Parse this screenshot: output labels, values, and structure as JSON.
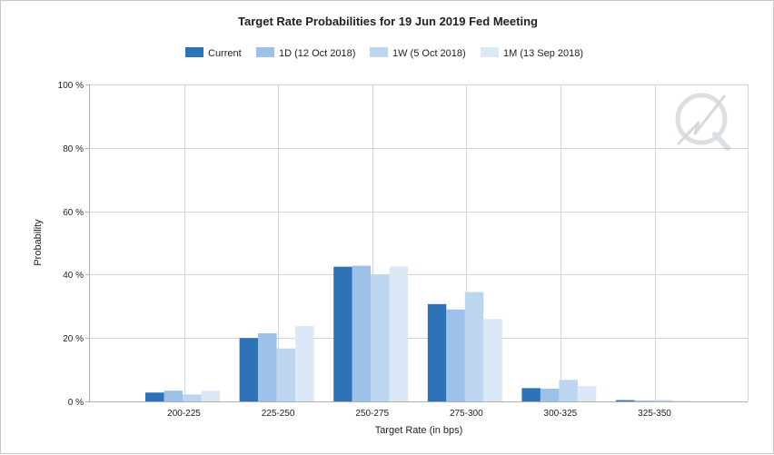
{
  "chart_data": {
    "type": "bar",
    "title": "Target Rate Probabilities for 19 Jun 2019 Fed Meeting",
    "xlabel": "Target Rate (in bps)",
    "ylabel": "Probability",
    "ylim": [
      0,
      100
    ],
    "yticks": [
      "0 %",
      "20 %",
      "40 %",
      "60 %",
      "80 %",
      "100 %"
    ],
    "yticks_values": [
      0,
      20,
      40,
      60,
      80,
      100
    ],
    "categories": [
      "200-225",
      "225-250",
      "250-275",
      "275-300",
      "300-325",
      "325-350"
    ],
    "grid": true,
    "legend_position": "top-center",
    "series": [
      {
        "name": "Current",
        "color": "#2e72b8",
        "values": [
          2.8,
          20.0,
          42.5,
          30.7,
          4.2,
          0.4
        ]
      },
      {
        "name": "1D (12 Oct 2018)",
        "color": "#9dc1e8",
        "values": [
          3.4,
          21.5,
          42.8,
          29.0,
          4.0,
          0.3
        ]
      },
      {
        "name": "1W (5 Oct 2018)",
        "color": "#bcd6ef",
        "values": [
          2.2,
          16.7,
          40.0,
          34.5,
          6.8,
          0.4
        ]
      },
      {
        "name": "1M (13 Sep 2018)",
        "color": "#dbe8f6",
        "values": [
          3.4,
          23.8,
          42.6,
          26.0,
          4.8,
          0.3
        ]
      }
    ]
  },
  "watermark_icon": "q-lightning-logo-icon"
}
